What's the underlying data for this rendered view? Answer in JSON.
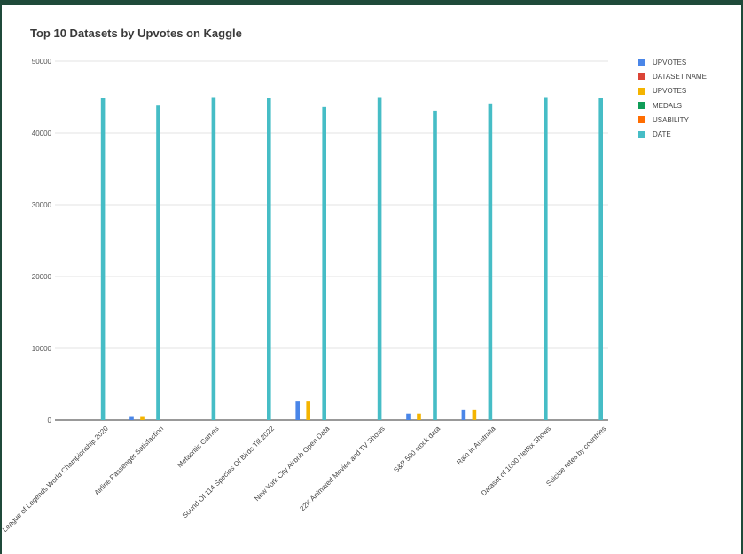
{
  "chart_data": {
    "type": "bar",
    "title": "Top 10 Datasets by Upvotes on Kaggle",
    "xlabel": "",
    "ylabel": "",
    "ylim": [
      0,
      50000
    ],
    "yticks": [
      "0",
      "10000",
      "20000",
      "30000",
      "40000",
      "50000"
    ],
    "ytick_values": [
      0,
      10000,
      20000,
      30000,
      40000,
      50000
    ],
    "grid": true,
    "legend_position": "right",
    "categories": [
      "League of Legends World Championship 2020",
      "Airline Passenger Satisfaction",
      "Metacritic Games",
      "Sound Of 114 Species Of Birds Till 2022",
      "New York City Airbnb Open Data",
      "22K Animated Movies and TV Shows",
      "S&P 500 stock data",
      "Rain in Australia",
      "Dataset of 1000 Netflix Shows",
      "Suicide rates by countries"
    ],
    "series": [
      {
        "name": "UPVOTES",
        "color": "#4a86e8",
        "values": [
          0,
          550,
          0,
          0,
          2700,
          0,
          900,
          1500,
          0,
          0
        ]
      },
      {
        "name": "DATASET NAME",
        "color": "#db4437",
        "values": [
          0,
          0,
          0,
          0,
          0,
          0,
          0,
          0,
          0,
          0
        ]
      },
      {
        "name": "UPVOTES",
        "color": "#f4b400",
        "values": [
          0,
          550,
          0,
          0,
          2700,
          0,
          900,
          1500,
          0,
          0
        ]
      },
      {
        "name": "MEDALS",
        "color": "#0f9d58",
        "values": [
          0,
          0,
          0,
          0,
          0,
          0,
          0,
          0,
          0,
          0
        ]
      },
      {
        "name": "USABILITY",
        "color": "#ff6d01",
        "values": [
          0,
          0,
          0,
          0,
          0,
          0,
          0,
          0,
          0,
          0
        ]
      },
      {
        "name": "DATE",
        "color": "#46bdc6",
        "values": [
          44900,
          43800,
          45000,
          44900,
          43600,
          45000,
          43100,
          44100,
          45000,
          44900
        ]
      }
    ]
  }
}
